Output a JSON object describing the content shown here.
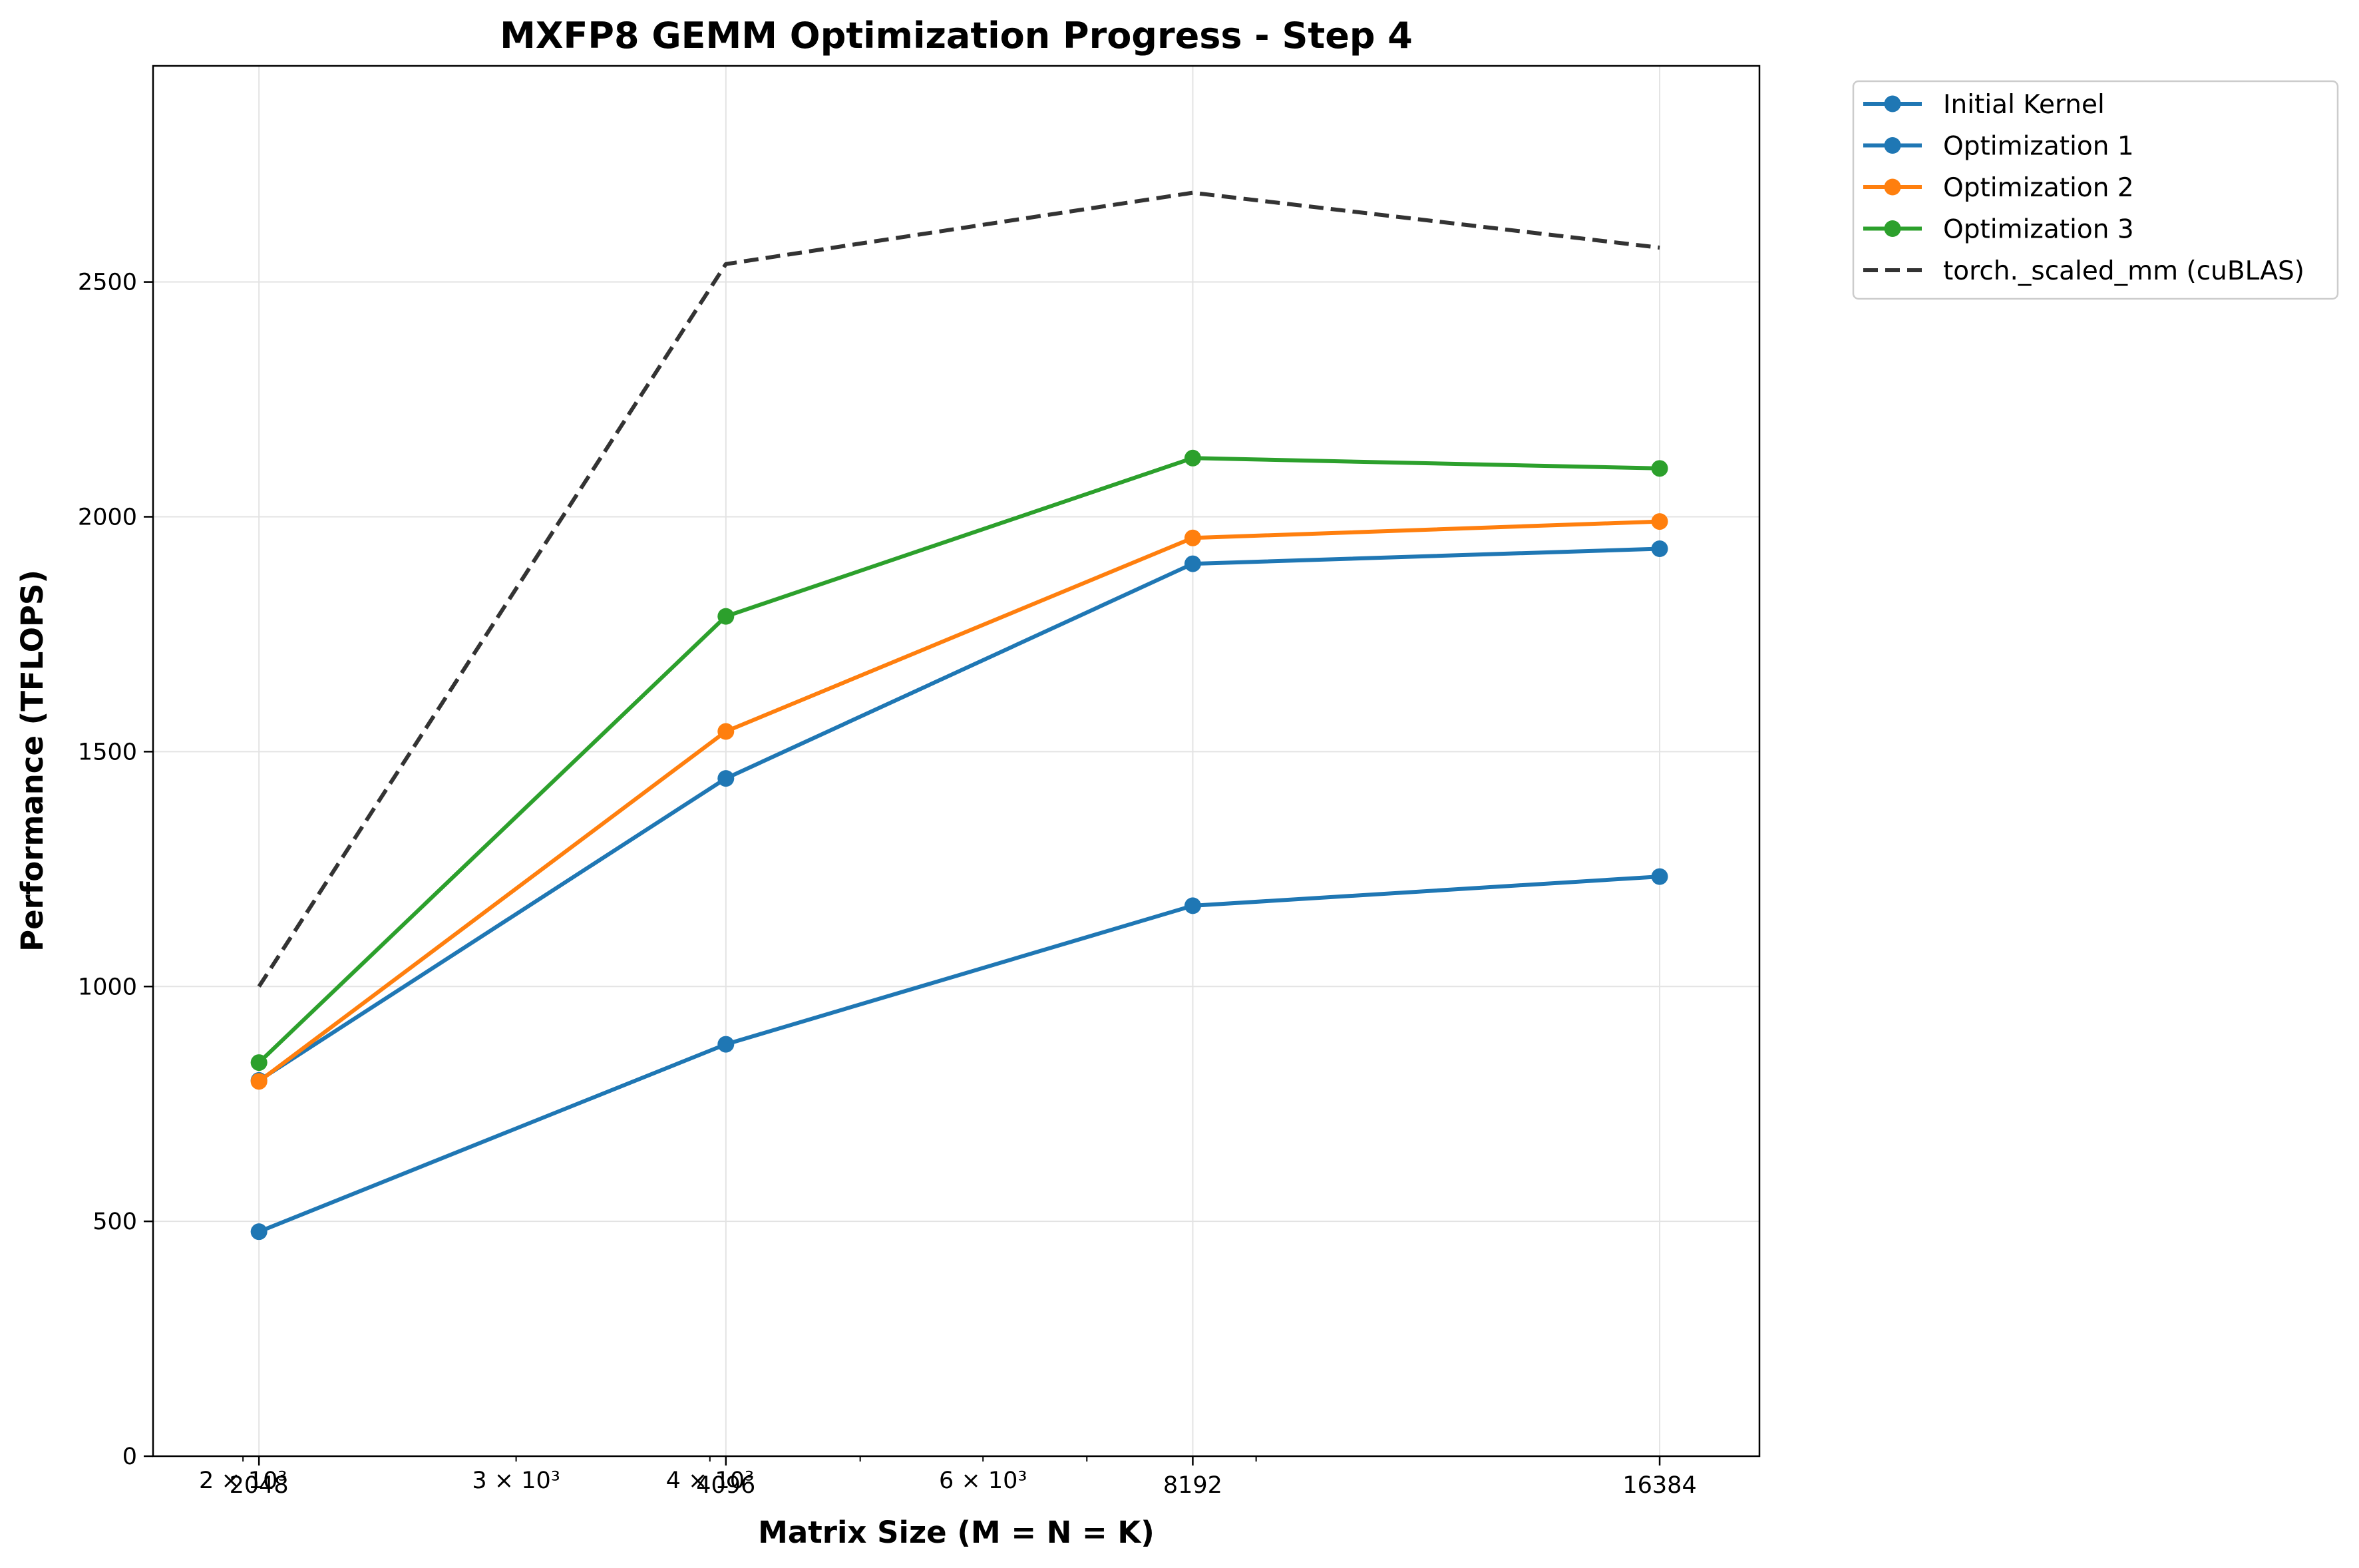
{
  "chart_data": {
    "type": "line",
    "title": "MXFP8 GEMM Optimization Progress - Step 4",
    "xlabel": "Matrix Size (M = N = K)",
    "ylabel": "Performance (TFLOPS)",
    "x_scale": "log",
    "x": [
      2048,
      4096,
      8192,
      16384
    ],
    "xlim": [
      1750,
      19000
    ],
    "ylim": [
      0,
      2960
    ],
    "x_major_ticks": [
      {
        "value": 2048,
        "label": "2048"
      },
      {
        "value": 4096,
        "label": "4096"
      },
      {
        "value": 8192,
        "label": "8192"
      },
      {
        "value": 16384,
        "label": "16384"
      }
    ],
    "x_log_ticks": [
      {
        "value": 2000,
        "label": "2 × 10³"
      },
      {
        "value": 3000,
        "label": "3 × 10³"
      },
      {
        "value": 4000,
        "label": "4 × 10³"
      },
      {
        "value": 6000,
        "label": "6 × 10³"
      }
    ],
    "x_minor_ticks": [
      5000,
      7000,
      9000
    ],
    "y_ticks": [
      {
        "value": 0,
        "label": "0"
      },
      {
        "value": 500,
        "label": "500"
      },
      {
        "value": 1000,
        "label": "1000"
      },
      {
        "value": 1500,
        "label": "1500"
      },
      {
        "value": 2000,
        "label": "2000"
      },
      {
        "value": 2500,
        "label": "2500"
      }
    ],
    "grid": true,
    "legend_position": "outside-top-right",
    "series": [
      {
        "name": "Initial Kernel",
        "values": [
          478,
          877,
          1172,
          1234
        ],
        "color": "#1f77b4",
        "style": "solid",
        "marker": "circle"
      },
      {
        "name": "Optimization 1",
        "values": [
          800,
          1443,
          1900,
          1932
        ],
        "color": "#1f77b4",
        "style": "solid",
        "marker": "circle"
      },
      {
        "name": "Optimization 2",
        "values": [
          798,
          1543,
          1955,
          1990
        ],
        "color": "#ff7f0e",
        "style": "solid",
        "marker": "circle"
      },
      {
        "name": "Optimization 3",
        "values": [
          838,
          1788,
          2125,
          2103
        ],
        "color": "#2ca02c",
        "style": "solid",
        "marker": "circle"
      },
      {
        "name": "torch._scaled_mm (cuBLAS)",
        "values": [
          1000,
          2538,
          2690,
          2573
        ],
        "color": "#333333",
        "style": "dashed",
        "marker": "none"
      }
    ]
  }
}
